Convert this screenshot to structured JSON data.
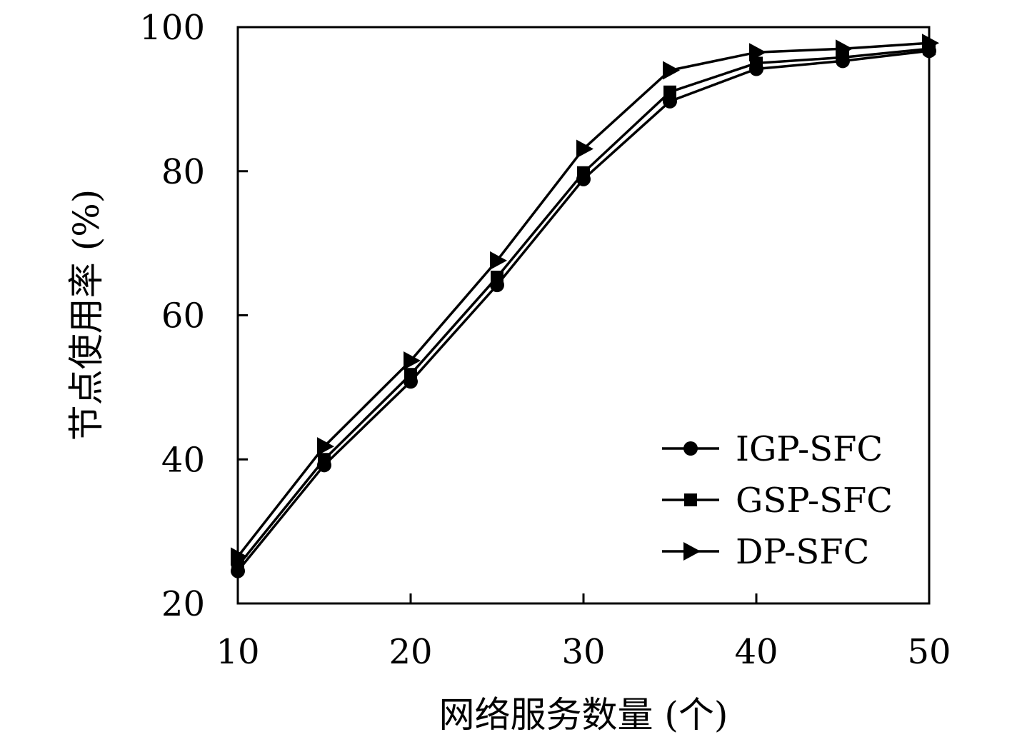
{
  "chart_data": {
    "type": "line",
    "title": "",
    "xlabel": "网络服务数量 (个)",
    "ylabel": "节点使用率 (%)",
    "xlim": [
      10,
      50
    ],
    "ylim": [
      20,
      100
    ],
    "xticks": [
      10,
      20,
      30,
      40,
      50
    ],
    "yticks": [
      20,
      40,
      60,
      80,
      100
    ],
    "grid": false,
    "legend_position": "bottom-right",
    "x": [
      10,
      15,
      20,
      25,
      30,
      35,
      40,
      45,
      50
    ],
    "series": [
      {
        "name": "IGP-SFC",
        "marker": "circle",
        "color": "#000000",
        "values": [
          24.5,
          39.2,
          50.8,
          64.2,
          78.9,
          89.7,
          94.2,
          95.3,
          96.7
        ]
      },
      {
        "name": "GSP-SFC",
        "marker": "square",
        "color": "#000000",
        "values": [
          25.2,
          40.0,
          51.8,
          65.3,
          79.8,
          91.0,
          95.0,
          95.8,
          97.0
        ]
      },
      {
        "name": "DP-SFC",
        "marker": "triangle-right",
        "color": "#000000",
        "values": [
          26.5,
          41.8,
          53.7,
          67.6,
          83.1,
          94.0,
          96.5,
          97.0,
          97.8
        ]
      }
    ]
  }
}
